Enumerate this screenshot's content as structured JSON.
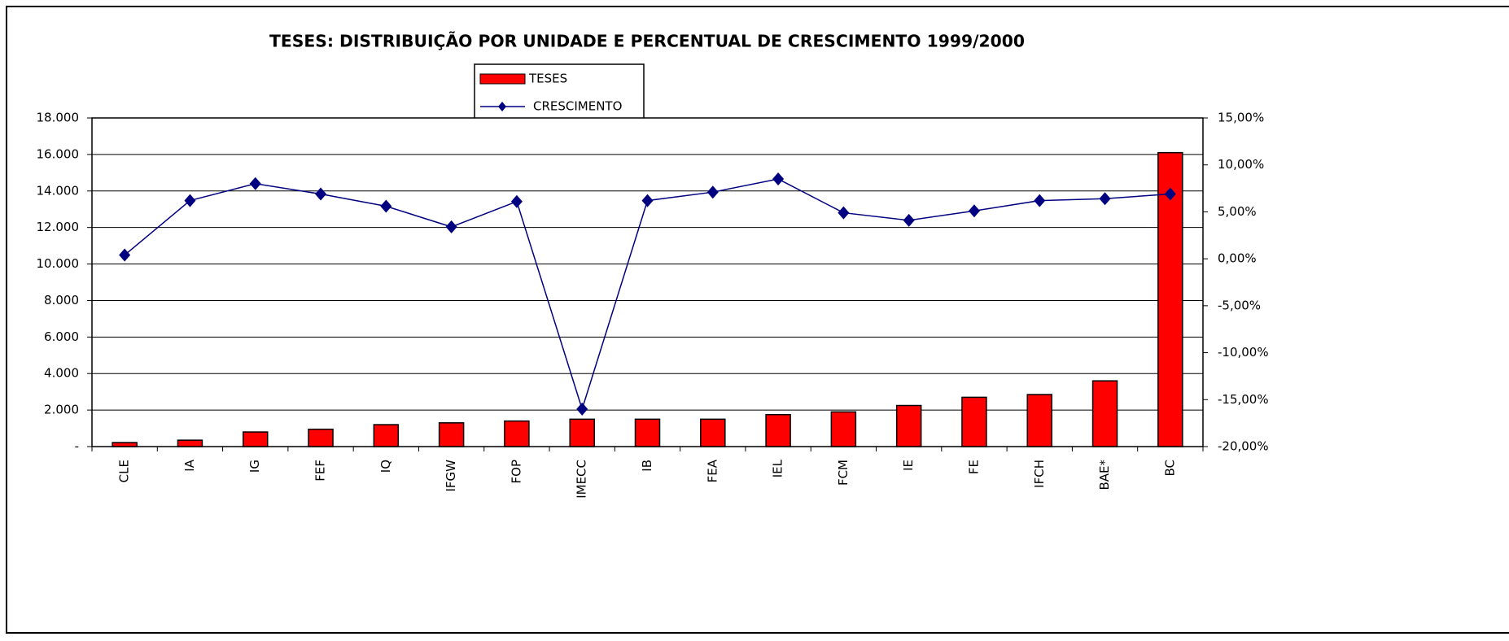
{
  "chart_data": {
    "type": "bar_line",
    "title": "TESES: DISTRIBUIÇÃO POR UNIDADE E PERCENTUAL DE CRESCIMENTO 1999/2000",
    "categories": [
      "CLE",
      "IA",
      "IG",
      "FEF",
      "IQ",
      "IFGW",
      "FOP",
      "IMECC",
      "IB",
      "FEA",
      "IEL",
      "FCM",
      "IE",
      "FE",
      "IFCH",
      "BAE*",
      "BC"
    ],
    "series": [
      {
        "name": "TESES",
        "color": "#ff0000",
        "axis": "y",
        "values": [
          220,
          350,
          800,
          950,
          1200,
          1300,
          1400,
          1500,
          1500,
          1500,
          1750,
          1900,
          2250,
          2700,
          2850,
          3600,
          16100
        ]
      },
      {
        "name": "CRESCIMENTO",
        "color": "#000080",
        "axis": "y2",
        "values": [
          0.4,
          6.2,
          8.0,
          6.9,
          5.6,
          3.4,
          6.1,
          -16.0,
          6.2,
          7.1,
          8.5,
          4.9,
          4.1,
          5.1,
          6.2,
          6.4,
          6.9
        ]
      }
    ],
    "ylim": [
      0,
      18000
    ],
    "yticks": [
      {
        "value": 0,
        "label": "-"
      },
      {
        "value": 2000,
        "label": "2.000"
      },
      {
        "value": 4000,
        "label": "4.000"
      },
      {
        "value": 6000,
        "label": "6.000"
      },
      {
        "value": 8000,
        "label": "8.000"
      },
      {
        "value": 10000,
        "label": "10.000"
      },
      {
        "value": 12000,
        "label": "12.000"
      },
      {
        "value": 14000,
        "label": "14.000"
      },
      {
        "value": 16000,
        "label": "16.000"
      },
      {
        "value": 18000,
        "label": "18.000"
      }
    ],
    "y2lim": [
      -20,
      15
    ],
    "y2ticks": [
      {
        "value": -20,
        "label": "-20,00%"
      },
      {
        "value": -15,
        "label": "-15,00%"
      },
      {
        "value": -10,
        "label": "-10,00%"
      },
      {
        "value": -5,
        "label": "-5,00%"
      },
      {
        "value": 0,
        "label": "0,00%"
      },
      {
        "value": 5,
        "label": "5,00%"
      },
      {
        "value": 10,
        "label": "10,00%"
      },
      {
        "value": 15,
        "label": "15,00%"
      }
    ],
    "grid": true,
    "legend": "top"
  }
}
